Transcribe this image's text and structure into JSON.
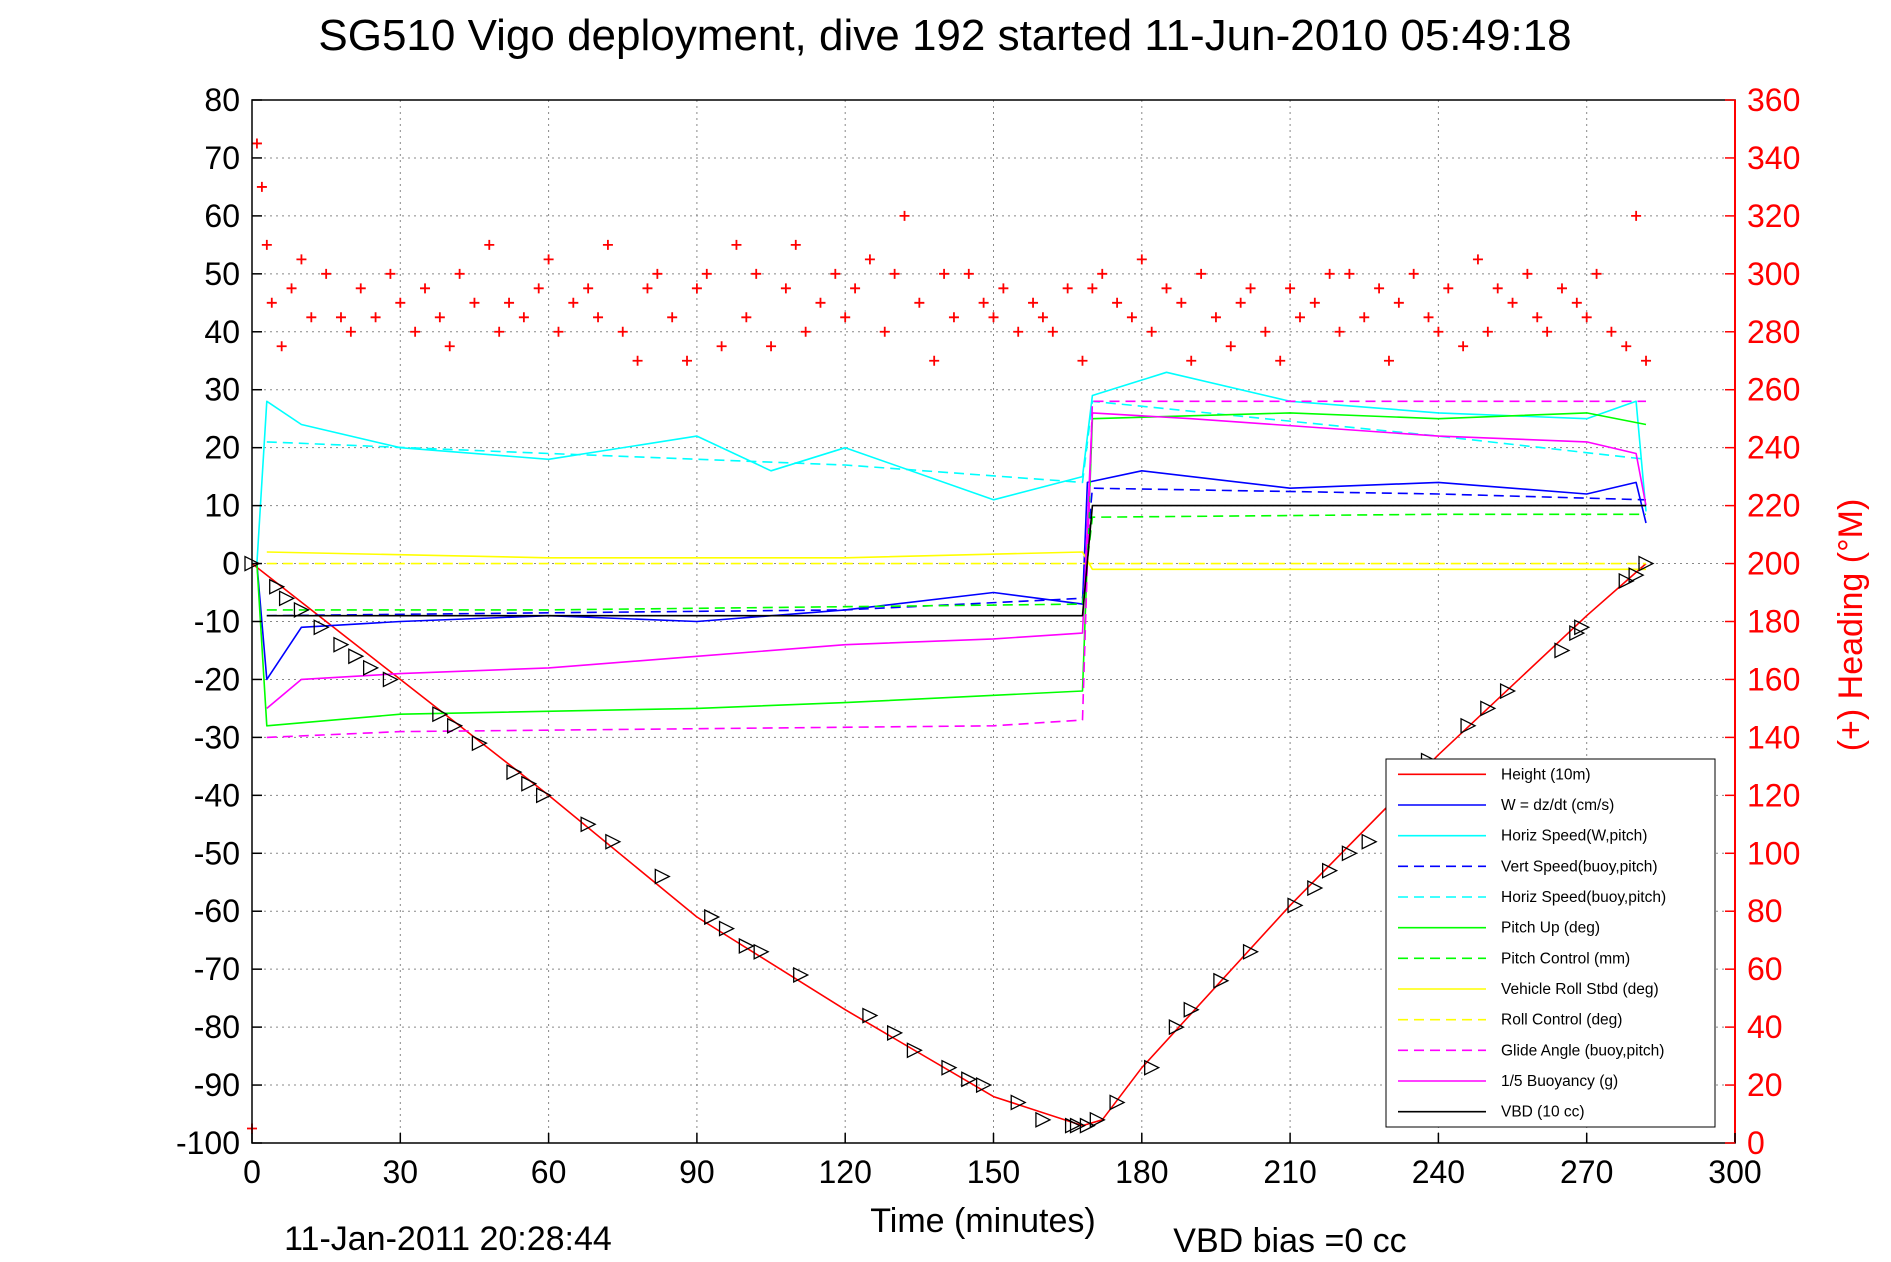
{
  "chart_data": {
    "type": "line",
    "title": "SG510 Vigo deployment, dive 192 started 11-Jun-2010 05:49:18",
    "xlabel": "Time (minutes)",
    "ylabel": "",
    "y2label": "(+) Heading (°M)",
    "xlim": [
      0,
      300
    ],
    "ylim": [
      -100,
      80
    ],
    "y2lim": [
      0,
      360
    ],
    "x_ticks": [
      "0",
      "30",
      "60",
      "90",
      "120",
      "150",
      "180",
      "210",
      "240",
      "270",
      "300"
    ],
    "y_ticks": [
      "80",
      "70",
      "60",
      "50",
      "40",
      "30",
      "20",
      "10",
      "0",
      "-10",
      "-20",
      "-30",
      "-40",
      "-50",
      "-60",
      "-70",
      "-80",
      "-90",
      "-100"
    ],
    "y2_ticks": [
      "360",
      "340",
      "320",
      "300",
      "280",
      "260",
      "240",
      "220",
      "200",
      "180",
      "160",
      "140",
      "120",
      "100",
      "80",
      "60",
      "40",
      "20",
      "0"
    ],
    "grid": true,
    "legend_position": "bottom-right",
    "timestamp": "11-Jan-2011 20:28:44",
    "vbd_bias": "VBD bias =0 cc",
    "series": [
      {
        "name": "Height (10m)",
        "color": "#ff0000",
        "style": "solid",
        "x": [
          0,
          30,
          60,
          90,
          120,
          150,
          168,
          172,
          180,
          210,
          240,
          270,
          282
        ],
        "y": [
          0,
          -20,
          -40,
          -61,
          -77,
          -92,
          -97,
          -96,
          -87,
          -59,
          -33,
          -9,
          0
        ]
      },
      {
        "name": "W = dz/dt (cm/s)",
        "color": "#0000ff",
        "style": "solid",
        "x": [
          1,
          3,
          10,
          30,
          60,
          90,
          120,
          150,
          168,
          169,
          180,
          210,
          240,
          270,
          280,
          282
        ],
        "y": [
          0,
          -20,
          -11,
          -10,
          -9,
          -10,
          -8,
          -5,
          -7,
          14,
          16,
          13,
          14,
          12,
          14,
          7
        ]
      },
      {
        "name": "Horiz Speed(W,pitch)",
        "color": "#00ffff",
        "style": "solid",
        "x": [
          1,
          3,
          10,
          30,
          60,
          90,
          105,
          120,
          150,
          168,
          170,
          185,
          210,
          240,
          270,
          280,
          282
        ],
        "y": [
          0,
          28,
          24,
          20,
          18,
          22,
          16,
          20,
          11,
          15,
          29,
          33,
          28,
          26,
          25,
          28,
          9
        ]
      },
      {
        "name": "Vert Speed(buoy,pitch)",
        "color": "#0000ff",
        "style": "dashed",
        "x": [
          3,
          60,
          120,
          168,
          170,
          240,
          282
        ],
        "y": [
          -9,
          -8.5,
          -8,
          -6,
          13,
          12,
          11
        ]
      },
      {
        "name": "Horiz Speed(buoy,pitch)",
        "color": "#00ffff",
        "style": "dashed",
        "x": [
          3,
          60,
          120,
          168,
          170,
          240,
          282
        ],
        "y": [
          21,
          19,
          17,
          14,
          28,
          22,
          18
        ]
      },
      {
        "name": "Pitch Up (deg)",
        "color": "#00ff00",
        "style": "solid",
        "x": [
          1,
          3,
          30,
          90,
          120,
          168,
          170,
          210,
          240,
          270,
          282
        ],
        "y": [
          0,
          -28,
          -26,
          -25,
          -24,
          -22,
          25,
          26,
          25,
          26,
          24
        ]
      },
      {
        "name": "Pitch Control (mm)",
        "color": "#00ff00",
        "style": "dashed",
        "x": [
          3,
          60,
          168,
          170,
          240,
          282
        ],
        "y": [
          -8,
          -8,
          -7,
          8,
          8.5,
          8.5
        ]
      },
      {
        "name": "Vehicle Roll Stbd (deg)",
        "color": "#ffff00",
        "style": "solid",
        "x": [
          3,
          60,
          120,
          168,
          170,
          240,
          282
        ],
        "y": [
          2,
          1,
          1,
          2,
          -1,
          -1,
          -1
        ]
      },
      {
        "name": "Roll Control (deg)",
        "color": "#ffff00",
        "style": "dashed",
        "x": [
          3,
          60,
          120,
          168,
          170,
          240,
          282
        ],
        "y": [
          0,
          0,
          0,
          0,
          0,
          0,
          0
        ]
      },
      {
        "name": "Glide Angle (buoy,pitch)",
        "color": "#ff00ff",
        "style": "dashed",
        "x": [
          3,
          30,
          90,
          150,
          168,
          170,
          240,
          282
        ],
        "y": [
          -30,
          -29,
          -28.5,
          -28,
          -27,
          28,
          28,
          28
        ]
      },
      {
        "name": "1/5 Buoyancy (g)",
        "color": "#ff00ff",
        "style": "solid",
        "x": [
          3,
          10,
          30,
          60,
          90,
          120,
          150,
          168,
          170,
          190,
          240,
          270,
          280,
          282
        ],
        "y": [
          -25,
          -20,
          -19,
          -18,
          -16,
          -14,
          -13,
          -12,
          26,
          25,
          22,
          21,
          19,
          10
        ]
      },
      {
        "name": "VBD (10 cc)",
        "color": "#000000",
        "style": "solid",
        "x": [
          3,
          168,
          170,
          282
        ],
        "y": [
          -9,
          -9,
          10,
          10
        ]
      }
    ],
    "heading": {
      "name": "(+) Heading",
      "color": "#ff0000",
      "marker": "+",
      "x": [
        0,
        1,
        2,
        3,
        4,
        6,
        8,
        10,
        12,
        15,
        18,
        20,
        22,
        25,
        28,
        30,
        33,
        35,
        38,
        40,
        42,
        45,
        48,
        50,
        52,
        55,
        58,
        60,
        62,
        65,
        68,
        70,
        72,
        75,
        78,
        80,
        82,
        85,
        88,
        90,
        92,
        95,
        98,
        100,
        102,
        105,
        108,
        110,
        112,
        115,
        118,
        120,
        122,
        125,
        128,
        130,
        132,
        135,
        138,
        140,
        142,
        145,
        148,
        150,
        152,
        155,
        158,
        160,
        162,
        165,
        168,
        170,
        172,
        175,
        178,
        180,
        182,
        185,
        188,
        190,
        192,
        195,
        198,
        200,
        202,
        205,
        208,
        210,
        212,
        215,
        218,
        220,
        222,
        225,
        228,
        230,
        232,
        235,
        238,
        240,
        242,
        245,
        248,
        250,
        252,
        255,
        258,
        260,
        262,
        265,
        268,
        270,
        272,
        275,
        278,
        280,
        282
      ],
      "y": [
        5,
        345,
        330,
        310,
        290,
        275,
        295,
        305,
        285,
        300,
        285,
        280,
        295,
        285,
        300,
        290,
        280,
        295,
        285,
        275,
        300,
        290,
        310,
        280,
        290,
        285,
        295,
        305,
        280,
        290,
        295,
        285,
        310,
        280,
        270,
        295,
        300,
        285,
        270,
        295,
        300,
        275,
        310,
        285,
        300,
        275,
        295,
        310,
        280,
        290,
        300,
        285,
        295,
        305,
        280,
        300,
        320,
        290,
        270,
        300,
        285,
        300,
        290,
        285,
        295,
        280,
        290,
        285,
        280,
        295,
        270,
        295,
        300,
        290,
        285,
        305,
        280,
        295,
        290,
        270,
        300,
        285,
        275,
        290,
        295,
        280,
        270,
        295,
        285,
        290,
        300,
        280,
        300,
        285,
        295,
        270,
        290,
        300,
        285,
        280,
        295,
        275,
        305,
        280,
        295,
        290,
        300,
        285,
        280,
        295,
        290,
        285,
        300,
        280,
        275,
        320,
        270
      ]
    },
    "vbd_markers": {
      "name": "",
      "color": "#000000",
      "x": [
        0,
        5,
        7,
        10,
        14,
        18,
        21,
        24,
        28,
        38,
        41,
        46,
        53,
        56,
        59,
        68,
        73,
        83,
        93,
        96,
        100,
        103,
        111,
        125,
        130,
        134,
        141,
        145,
        148,
        155,
        160,
        166,
        167,
        169,
        171,
        175,
        182,
        187,
        190,
        196,
        202,
        211,
        215,
        218,
        222,
        226,
        238,
        246,
        250,
        254,
        265,
        268,
        269,
        278,
        280,
        282
      ],
      "y": [
        0,
        -4,
        -6,
        -8,
        -11,
        -14,
        -16,
        -18,
        -20,
        -26,
        -28,
        -31,
        -36,
        -38,
        -40,
        -45,
        -48,
        -54,
        -61,
        -63,
        -66,
        -67,
        -71,
        -78,
        -81,
        -84,
        -87,
        -89,
        -90,
        -93,
        -96,
        -97,
        -97,
        -97,
        -96,
        -93,
        -87,
        -80,
        -77,
        -72,
        -67,
        -59,
        -56,
        -53,
        -50,
        -48,
        -34,
        -28,
        -25,
        -22,
        -15,
        -12,
        -11,
        -3,
        -2,
        0
      ]
    }
  }
}
